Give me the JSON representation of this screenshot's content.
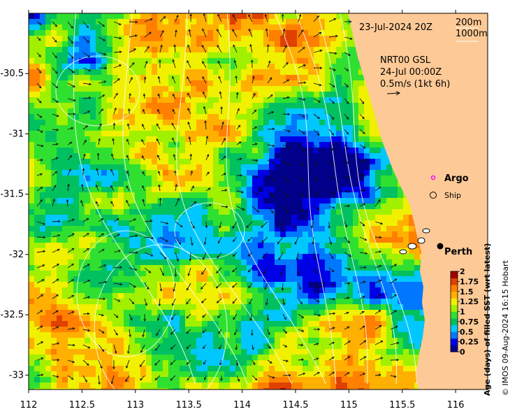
{
  "map": {
    "date_label": "23-Jul-2024 20Z",
    "contour_legend": [
      "200m",
      "1000m"
    ],
    "current_source": "NRT00 GSL",
    "current_time": "24-Jul 00:00Z",
    "current_scale": "0.5m/s (1kt 6h)",
    "legend_argo": "Argo",
    "legend_ship": "Ship",
    "city_label": "Perth",
    "credit": "© IMOS 09-Aug-2024 16:15 Hobart",
    "colors": {
      "land": "#fdc996",
      "argo": "#ff00ff",
      "contour": "#ffffff"
    }
  },
  "x_ticks": [
    "112",
    "112.5",
    "113",
    "113.5",
    "114",
    "114.5",
    "115",
    "115.5",
    "116"
  ],
  "y_ticks": [
    "-30.5",
    "-31",
    "-31.5",
    "-32",
    "-32.5",
    "-33"
  ],
  "colorbar": {
    "title": "Age (days) of filled SST (wrt latest)",
    "labels": [
      "2",
      "1.75",
      "1.5",
      "1.25",
      "1",
      "0.75",
      "0.5",
      "0.25",
      "0"
    ],
    "range": [
      0,
      2
    ],
    "colors": [
      "#00008b",
      "#0000e6",
      "#0077ff",
      "#00c8ff",
      "#00c060",
      "#30e030",
      "#a0f000",
      "#f0f000",
      "#ffb000",
      "#ff8000",
      "#e04000",
      "#a00000"
    ]
  }
}
